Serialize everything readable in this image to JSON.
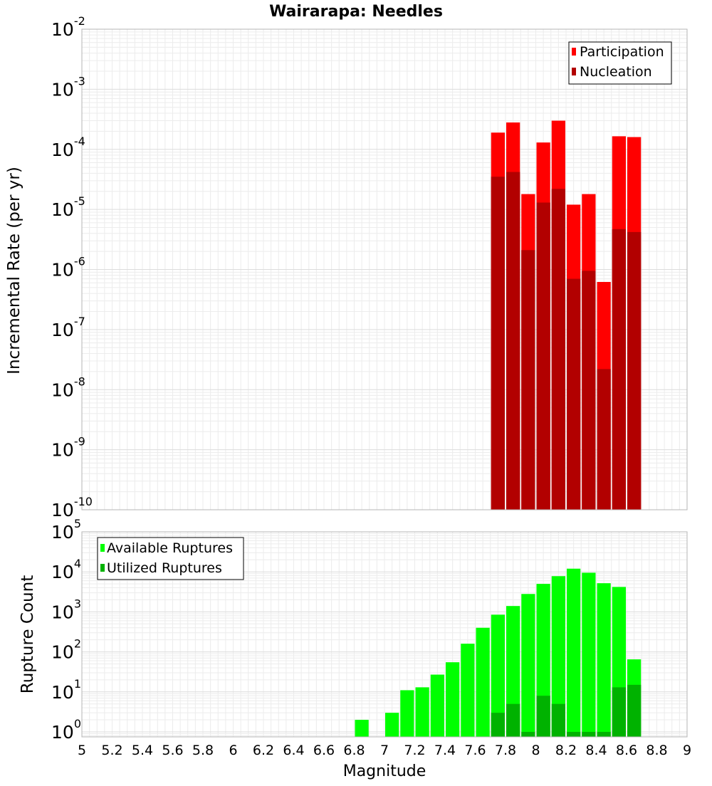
{
  "chart_data": [
    {
      "type": "bar",
      "title": "Wairarapa: Needles",
      "xlabel": "",
      "ylabel": "Incremental Rate (per yr)",
      "xlim": [
        5,
        9
      ],
      "ylim": [
        1e-10,
        0.01
      ],
      "y_scale": "log",
      "bar_width": 0.1,
      "grid": true,
      "legend_position": "top-right",
      "y_ticks": [
        {
          "base": "10",
          "exp": "-10"
        },
        {
          "base": "10",
          "exp": "-9"
        },
        {
          "base": "10",
          "exp": "-8"
        },
        {
          "base": "10",
          "exp": "-7"
        },
        {
          "base": "10",
          "exp": "-6"
        },
        {
          "base": "10",
          "exp": "-5"
        },
        {
          "base": "10",
          "exp": "-4"
        },
        {
          "base": "10",
          "exp": "-3"
        },
        {
          "base": "10",
          "exp": "-2"
        }
      ],
      "series": [
        {
          "name": "Participation",
          "color": "#ff0000",
          "x": [
            7.75,
            7.85,
            7.95,
            8.05,
            8.15,
            8.25,
            8.35,
            8.45,
            8.55,
            8.65
          ],
          "values": [
            0.00019,
            0.00028,
            1.8e-05,
            0.00013,
            0.0003,
            1.2e-05,
            1.8e-05,
            6.2e-07,
            0.000165,
            0.00016
          ]
        },
        {
          "name": "Nucleation",
          "color": "#b20000",
          "x": [
            7.75,
            7.85,
            7.95,
            8.05,
            8.15,
            8.25,
            8.35,
            8.45,
            8.55,
            8.65
          ],
          "values": [
            3.5e-05,
            4.2e-05,
            2.1e-06,
            1.3e-05,
            2.2e-05,
            7e-07,
            9.5e-07,
            2.2e-08,
            4.7e-06,
            4.2e-06
          ]
        }
      ]
    },
    {
      "type": "bar",
      "title": "",
      "xlabel": "Magnitude",
      "ylabel": "Rupture Count",
      "xlim": [
        5,
        9
      ],
      "ylim": [
        0.75,
        100000.0
      ],
      "y_scale": "log",
      "bar_width": 0.1,
      "grid": true,
      "legend_position": "top-left",
      "y_ticks": [
        {
          "base": "10",
          "exp": "0"
        },
        {
          "base": "10",
          "exp": "1"
        },
        {
          "base": "10",
          "exp": "2"
        },
        {
          "base": "10",
          "exp": "3"
        },
        {
          "base": "10",
          "exp": "4"
        },
        {
          "base": "10",
          "exp": "5"
        }
      ],
      "x_ticks": [
        "5",
        "5.2",
        "5.4",
        "5.6",
        "5.8",
        "6",
        "6.2",
        "6.4",
        "6.6",
        "6.8",
        "7",
        "7.2",
        "7.4",
        "7.6",
        "7.8",
        "8",
        "8.2",
        "8.4",
        "8.6",
        "8.8",
        "9"
      ],
      "series": [
        {
          "name": "Available Ruptures",
          "color": "#00ff00",
          "x": [
            6.85,
            7.05,
            7.15,
            7.25,
            7.35,
            7.45,
            7.55,
            7.65,
            7.75,
            7.85,
            7.95,
            8.05,
            8.15,
            8.25,
            8.35,
            8.45,
            8.55,
            8.65
          ],
          "values": [
            2,
            3,
            11,
            13,
            27,
            55,
            160,
            400,
            850,
            1400,
            2800,
            5000,
            7800,
            12000,
            9500,
            5200,
            4200,
            65
          ]
        },
        {
          "name": "Utilized Ruptures",
          "color": "#00b200",
          "x": [
            7.75,
            7.85,
            7.95,
            8.05,
            8.15,
            8.25,
            8.35,
            8.45,
            8.55,
            8.65
          ],
          "values": [
            3,
            5,
            1,
            8,
            5,
            1,
            1,
            1,
            13,
            15
          ]
        }
      ]
    }
  ]
}
